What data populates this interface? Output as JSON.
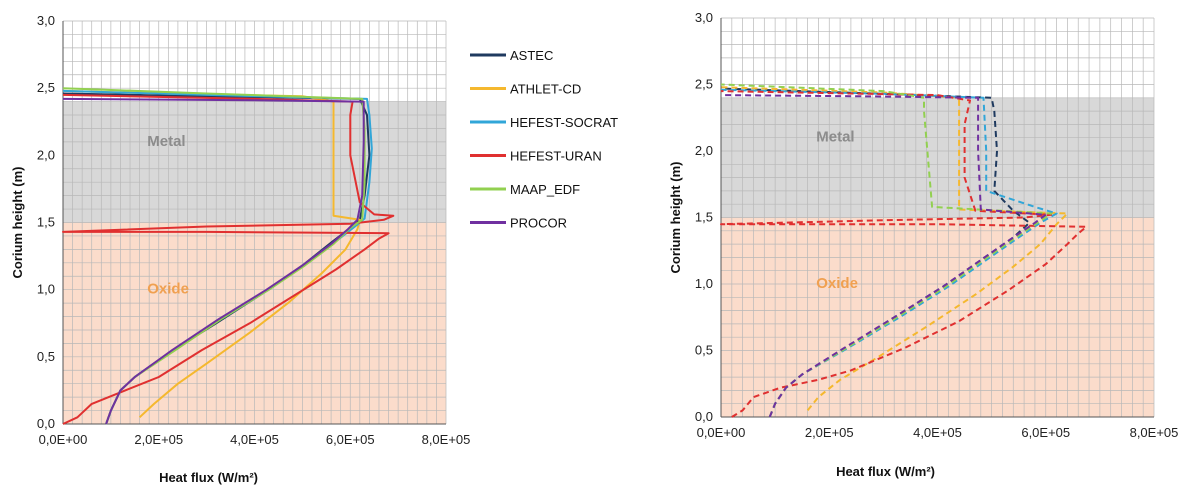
{
  "chart_data": [
    {
      "type": "line",
      "xlabel": "Heat flux (W/m²)",
      "ylabel": "Corium height (m)",
      "xlim": [
        0,
        800000
      ],
      "ylim": [
        0,
        3.0
      ],
      "x_ticks": [
        "0,0E+00",
        "2,0E+05",
        "4,0E+05",
        "6,0E+05",
        "8,0E+05"
      ],
      "y_ticks": [
        "0,0",
        "0,5",
        "1,0",
        "1,5",
        "2,0",
        "2,5",
        "3,0"
      ],
      "grid": true,
      "line_style": "solid",
      "regions": [
        {
          "label": "Metal",
          "y_from": 1.5,
          "y_to": 2.4,
          "color": "#d8d8d8",
          "text_color": "#8c8c8c"
        },
        {
          "label": "Oxide",
          "y_from": 0.0,
          "y_to": 1.5,
          "color": "#fbdccb",
          "text_color": "#f0a050"
        }
      ],
      "legend": {
        "position": "right",
        "entries": [
          "ASTEC",
          "ATHLET-CD",
          "HEFEST-SOCRAT",
          "HEFEST-URAN",
          "MAAP_EDF",
          "PROCOR"
        ]
      },
      "series": [
        {
          "name": "ASTEC",
          "color": "#1f3a5f",
          "points": [
            [
              90000,
              0
            ],
            [
              100000,
              0.1
            ],
            [
              120000,
              0.25
            ],
            [
              150000,
              0.35
            ],
            [
              230000,
              0.55
            ],
            [
              320000,
              0.75
            ],
            [
              420000,
              0.98
            ],
            [
              500000,
              1.18
            ],
            [
              560000,
              1.35
            ],
            [
              600000,
              1.46
            ],
            [
              620000,
              1.52
            ],
            [
              630000,
              1.7
            ],
            [
              640000,
              2.0
            ],
            [
              635000,
              2.3
            ],
            [
              620000,
              2.42
            ],
            [
              300000,
              2.44
            ],
            [
              0,
              2.46
            ]
          ]
        },
        {
          "name": "ATHLET-CD",
          "color": "#f5b82e",
          "points": [
            [
              160000,
              0.05
            ],
            [
              190000,
              0.15
            ],
            [
              240000,
              0.3
            ],
            [
              300000,
              0.45
            ],
            [
              390000,
              0.68
            ],
            [
              470000,
              0.9
            ],
            [
              540000,
              1.12
            ],
            [
              590000,
              1.3
            ],
            [
              615000,
              1.45
            ],
            [
              620000,
              1.52
            ],
            [
              565000,
              1.55
            ],
            [
              565000,
              2.4
            ],
            [
              500000,
              2.44
            ],
            [
              200000,
              2.46
            ],
            [
              0,
              2.48
            ]
          ]
        },
        {
          "name": "HEFEST-SOCRAT",
          "color": "#31a6d8",
          "points": [
            [
              90000,
              0
            ],
            [
              100000,
              0.1
            ],
            [
              120000,
              0.25
            ],
            [
              150000,
              0.35
            ],
            [
              230000,
              0.55
            ],
            [
              330000,
              0.78
            ],
            [
              430000,
              1.0
            ],
            [
              510000,
              1.2
            ],
            [
              570000,
              1.36
            ],
            [
              610000,
              1.47
            ],
            [
              630000,
              1.53
            ],
            [
              640000,
              1.8
            ],
            [
              645000,
              2.05
            ],
            [
              640000,
              2.3
            ],
            [
              635000,
              2.42
            ],
            [
              300000,
              2.45
            ],
            [
              0,
              2.48
            ]
          ]
        },
        {
          "name": "HEFEST-URAN",
          "color": "#e03030",
          "points": [
            [
              0,
              0
            ],
            [
              30000,
              0.05
            ],
            [
              60000,
              0.15
            ],
            [
              130000,
              0.25
            ],
            [
              200000,
              0.35
            ],
            [
              290000,
              0.55
            ],
            [
              390000,
              0.75
            ],
            [
              480000,
              0.95
            ],
            [
              570000,
              1.15
            ],
            [
              630000,
              1.3
            ],
            [
              660000,
              1.38
            ],
            [
              680000,
              1.42
            ],
            [
              300000,
              1.43
            ],
            [
              0,
              1.43
            ],
            [
              300000,
              1.47
            ],
            [
              600000,
              1.49
            ],
            [
              670000,
              1.52
            ],
            [
              690000,
              1.55
            ],
            [
              650000,
              1.56
            ],
            [
              620000,
              1.65
            ],
            [
              600000,
              2.0
            ],
            [
              600000,
              2.3
            ],
            [
              605000,
              2.4
            ],
            [
              400000,
              2.42
            ],
            [
              0,
              2.45
            ]
          ]
        },
        {
          "name": "MAAP_EDF",
          "color": "#92d050",
          "points": [
            [
              90000,
              0
            ],
            [
              100000,
              0.1
            ],
            [
              120000,
              0.25
            ],
            [
              150000,
              0.35
            ],
            [
              235000,
              0.55
            ],
            [
              330000,
              0.78
            ],
            [
              430000,
              1.0
            ],
            [
              505000,
              1.18
            ],
            [
              565000,
              1.34
            ],
            [
              600000,
              1.46
            ],
            [
              625000,
              1.52
            ],
            [
              630000,
              1.8
            ],
            [
              630000,
              2.2
            ],
            [
              625000,
              2.42
            ],
            [
              300000,
              2.46
            ],
            [
              0,
              2.5
            ]
          ]
        },
        {
          "name": "PROCOR",
          "color": "#7030a0",
          "points": [
            [
              90000,
              0
            ],
            [
              100000,
              0.1
            ],
            [
              120000,
              0.25
            ],
            [
              150000,
              0.35
            ],
            [
              228000,
              0.55
            ],
            [
              325000,
              0.78
            ],
            [
              425000,
              1.0
            ],
            [
              500000,
              1.18
            ],
            [
              560000,
              1.34
            ],
            [
              595000,
              1.45
            ],
            [
              615000,
              1.52
            ],
            [
              625000,
              1.7
            ],
            [
              628000,
              2.1
            ],
            [
              628000,
              2.4
            ],
            [
              400000,
              2.41
            ],
            [
              0,
              2.42
            ]
          ]
        }
      ]
    },
    {
      "type": "line",
      "xlabel": "Heat flux (W/m²)",
      "ylabel": "Corium height (m)",
      "xlim": [
        0,
        800000
      ],
      "ylim": [
        0,
        3.0
      ],
      "x_ticks": [
        "0,0E+00",
        "2,0E+05",
        "4,0E+05",
        "6,0E+05",
        "8,0E+05"
      ],
      "y_ticks": [
        "0,0",
        "0,5",
        "1,0",
        "1,5",
        "2,0",
        "2,5",
        "3,0"
      ],
      "grid": true,
      "line_style": "dashed",
      "regions": [
        {
          "label": "Metal",
          "y_from": 1.5,
          "y_to": 2.4,
          "color": "#d8d8d8",
          "text_color": "#8c8c8c"
        },
        {
          "label": "Oxide",
          "y_from": 0.0,
          "y_to": 1.5,
          "color": "#fbdccb",
          "text_color": "#f0a050"
        }
      ],
      "series": [
        {
          "name": "ASTEC",
          "color": "#1f3a5f",
          "points": [
            [
              90000,
              0
            ],
            [
              100000,
              0.1
            ],
            [
              120000,
              0.22
            ],
            [
              150000,
              0.32
            ],
            [
              230000,
              0.52
            ],
            [
              320000,
              0.75
            ],
            [
              410000,
              0.98
            ],
            [
              480000,
              1.18
            ],
            [
              540000,
              1.35
            ],
            [
              570000,
              1.46
            ],
            [
              540000,
              1.55
            ],
            [
              505000,
              1.7
            ],
            [
              510000,
              2.0
            ],
            [
              505000,
              2.3
            ],
            [
              500000,
              2.4
            ],
            [
              300000,
              2.43
            ],
            [
              0,
              2.47
            ]
          ]
        },
        {
          "name": "ATHLET-CD",
          "color": "#f5b82e",
          "points": [
            [
              160000,
              0.05
            ],
            [
              180000,
              0.15
            ],
            [
              220000,
              0.28
            ],
            [
              290000,
              0.45
            ],
            [
              380000,
              0.68
            ],
            [
              470000,
              0.92
            ],
            [
              540000,
              1.13
            ],
            [
              590000,
              1.3
            ],
            [
              620000,
              1.45
            ],
            [
              640000,
              1.53
            ],
            [
              440000,
              1.56
            ],
            [
              440000,
              2.4
            ],
            [
              300000,
              2.44
            ],
            [
              0,
              2.48
            ]
          ]
        },
        {
          "name": "HEFEST-SOCRAT",
          "color": "#31a6d8",
          "points": [
            [
              90000,
              0
            ],
            [
              100000,
              0.1
            ],
            [
              120000,
              0.22
            ],
            [
              150000,
              0.32
            ],
            [
              235000,
              0.52
            ],
            [
              330000,
              0.75
            ],
            [
              420000,
              0.98
            ],
            [
              490000,
              1.18
            ],
            [
              550000,
              1.35
            ],
            [
              590000,
              1.46
            ],
            [
              620000,
              1.53
            ],
            [
              580000,
              1.58
            ],
            [
              490000,
              1.7
            ],
            [
              490000,
              2.0
            ],
            [
              485000,
              2.4
            ],
            [
              300000,
              2.43
            ],
            [
              0,
              2.46
            ]
          ]
        },
        {
          "name": "HEFEST-URAN",
          "color": "#e03030",
          "points": [
            [
              20000,
              0
            ],
            [
              40000,
              0.05
            ],
            [
              60000,
              0.15
            ],
            [
              110000,
              0.22
            ],
            [
              180000,
              0.28
            ],
            [
              240000,
              0.35
            ],
            [
              340000,
              0.52
            ],
            [
              440000,
              0.72
            ],
            [
              530000,
              0.95
            ],
            [
              600000,
              1.15
            ],
            [
              640000,
              1.3
            ],
            [
              660000,
              1.38
            ],
            [
              675000,
              1.43
            ],
            [
              400000,
              1.45
            ],
            [
              0,
              1.45
            ],
            [
              300000,
              1.48
            ],
            [
              560000,
              1.5
            ],
            [
              610000,
              1.52
            ],
            [
              470000,
              1.55
            ],
            [
              450000,
              1.8
            ],
            [
              450000,
              2.2
            ],
            [
              460000,
              2.38
            ],
            [
              400000,
              2.42
            ],
            [
              0,
              2.45
            ]
          ]
        },
        {
          "name": "MAAP_EDF",
          "color": "#92d050",
          "points": [
            [
              90000,
              0
            ],
            [
              100000,
              0.1
            ],
            [
              120000,
              0.22
            ],
            [
              150000,
              0.32
            ],
            [
              232000,
              0.52
            ],
            [
              325000,
              0.75
            ],
            [
              415000,
              0.98
            ],
            [
              485000,
              1.18
            ],
            [
              545000,
              1.35
            ],
            [
              585000,
              1.46
            ],
            [
              610000,
              1.53
            ],
            [
              390000,
              1.58
            ],
            [
              375000,
              2.3
            ],
            [
              375000,
              2.4
            ],
            [
              300000,
              2.45
            ],
            [
              0,
              2.5
            ]
          ]
        },
        {
          "name": "PROCOR",
          "color": "#7030a0",
          "points": [
            [
              90000,
              0
            ],
            [
              100000,
              0.1
            ],
            [
              120000,
              0.22
            ],
            [
              150000,
              0.32
            ],
            [
              228000,
              0.52
            ],
            [
              320000,
              0.75
            ],
            [
              410000,
              0.98
            ],
            [
              480000,
              1.18
            ],
            [
              540000,
              1.35
            ],
            [
              580000,
              1.46
            ],
            [
              600000,
              1.52
            ],
            [
              480000,
              1.56
            ],
            [
              475000,
              2.0
            ],
            [
              475000,
              2.4
            ],
            [
              300000,
              2.41
            ],
            [
              0,
              2.42
            ]
          ]
        }
      ]
    }
  ]
}
